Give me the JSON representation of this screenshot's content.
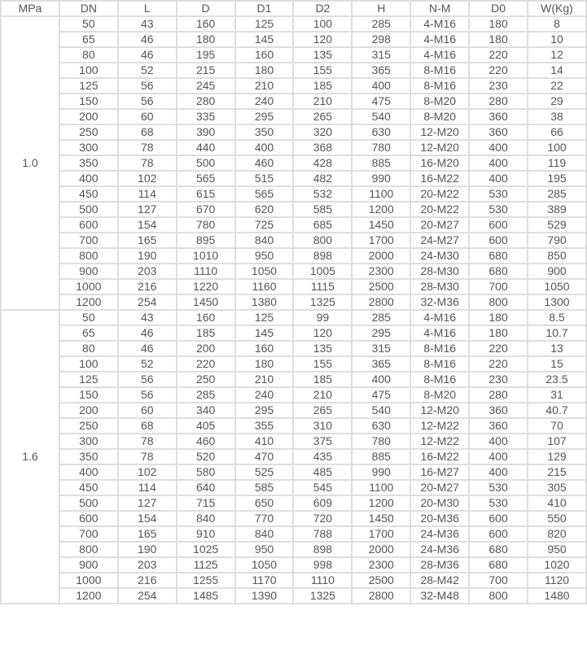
{
  "headers": [
    "MPa",
    "DN",
    "L",
    "D",
    "D1",
    "D2",
    "H",
    "N-M",
    "D0",
    "W(Kg)"
  ],
  "groups": [
    {
      "pressure": "1.0",
      "rows": [
        [
          "50",
          "43",
          "160",
          "125",
          "100",
          "285",
          "4-M16",
          "180",
          "8"
        ],
        [
          "65",
          "46",
          "180",
          "145",
          "120",
          "298",
          "4-M16",
          "180",
          "10"
        ],
        [
          "80",
          "46",
          "195",
          "160",
          "135",
          "315",
          "4-M16",
          "220",
          "12"
        ],
        [
          "100",
          "52",
          "215",
          "180",
          "155",
          "365",
          "8-M16",
          "220",
          "14"
        ],
        [
          "125",
          "56",
          "245",
          "210",
          "185",
          "400",
          "8-M16",
          "230",
          "22"
        ],
        [
          "150",
          "56",
          "280",
          "240",
          "210",
          "475",
          "8-M20",
          "280",
          "29"
        ],
        [
          "200",
          "60",
          "335",
          "295",
          "265",
          "540",
          "8-M20",
          "360",
          "38"
        ],
        [
          "250",
          "68",
          "390",
          "350",
          "320",
          "630",
          "12-M20",
          "360",
          "66"
        ],
        [
          "300",
          "78",
          "440",
          "400",
          "368",
          "780",
          "12-M20",
          "400",
          "100"
        ],
        [
          "350",
          "78",
          "500",
          "460",
          "428",
          "885",
          "16-M20",
          "400",
          "119"
        ],
        [
          "400",
          "102",
          "565",
          "515",
          "482",
          "990",
          "16-M22",
          "400",
          "195"
        ],
        [
          "450",
          "114",
          "615",
          "565",
          "532",
          "1100",
          "20-M22",
          "530",
          "285"
        ],
        [
          "500",
          "127",
          "670",
          "620",
          "585",
          "1200",
          "20-M22",
          "530",
          "389"
        ],
        [
          "600",
          "154",
          "780",
          "725",
          "685",
          "1450",
          "20-M27",
          "600",
          "529"
        ],
        [
          "700",
          "165",
          "895",
          "840",
          "800",
          "1700",
          "24-M27",
          "600",
          "790"
        ],
        [
          "800",
          "190",
          "1010",
          "950",
          "898",
          "2000",
          "24-M30",
          "680",
          "850"
        ],
        [
          "900",
          "203",
          "1110",
          "1050",
          "1005",
          "2300",
          "28-M30",
          "680",
          "900"
        ],
        [
          "1000",
          "216",
          "1220",
          "1160",
          "1115",
          "2500",
          "28-M30",
          "700",
          "1050"
        ],
        [
          "1200",
          "254",
          "1450",
          "1380",
          "1325",
          "2800",
          "32-M36",
          "800",
          "1300"
        ]
      ]
    },
    {
      "pressure": "1.6",
      "rows": [
        [
          "50",
          "43",
          "160",
          "125",
          "99",
          "285",
          "4-M16",
          "180",
          "8.5"
        ],
        [
          "65",
          "46",
          "185",
          "145",
          "120",
          "295",
          "4-M16",
          "180",
          "10.7"
        ],
        [
          "80",
          "46",
          "200",
          "160",
          "135",
          "315",
          "8-M16",
          "220",
          "13"
        ],
        [
          "100",
          "52",
          "220",
          "180",
          "155",
          "365",
          "8-M16",
          "220",
          "15"
        ],
        [
          "125",
          "56",
          "250",
          "210",
          "185",
          "400",
          "8-M16",
          "230",
          "23.5"
        ],
        [
          "150",
          "56",
          "285",
          "240",
          "210",
          "475",
          "8-M20",
          "280",
          "31"
        ],
        [
          "200",
          "60",
          "340",
          "295",
          "265",
          "540",
          "12-M20",
          "360",
          "40.7"
        ],
        [
          "250",
          "68",
          "405",
          "355",
          "310",
          "630",
          "12-M22",
          "360",
          "70"
        ],
        [
          "300",
          "78",
          "460",
          "410",
          "375",
          "780",
          "12-M22",
          "400",
          "107"
        ],
        [
          "350",
          "78",
          "520",
          "470",
          "435",
          "885",
          "16-M22",
          "400",
          "129"
        ],
        [
          "400",
          "102",
          "580",
          "525",
          "485",
          "990",
          "16-M27",
          "400",
          "215"
        ],
        [
          "450",
          "114",
          "640",
          "585",
          "545",
          "1100",
          "20-M27",
          "530",
          "305"
        ],
        [
          "500",
          "127",
          "715",
          "650",
          "609",
          "1200",
          "20-M30",
          "530",
          "410"
        ],
        [
          "600",
          "154",
          "840",
          "770",
          "720",
          "1450",
          "20-M36",
          "600",
          "550"
        ],
        [
          "700",
          "165",
          "910",
          "840",
          "788",
          "1700",
          "24-M36",
          "600",
          "820"
        ],
        [
          "800",
          "190",
          "1025",
          "950",
          "898",
          "2000",
          "24-M36",
          "680",
          "950"
        ],
        [
          "900",
          "203",
          "1125",
          "1050",
          "998",
          "2300",
          "28-M36",
          "680",
          "1020"
        ],
        [
          "1000",
          "216",
          "1255",
          "1170",
          "1110",
          "2500",
          "28-M42",
          "700",
          "1120"
        ],
        [
          "1200",
          "254",
          "1485",
          "1390",
          "1325",
          "2800",
          "32-M48",
          "800",
          "1480"
        ]
      ]
    }
  ]
}
